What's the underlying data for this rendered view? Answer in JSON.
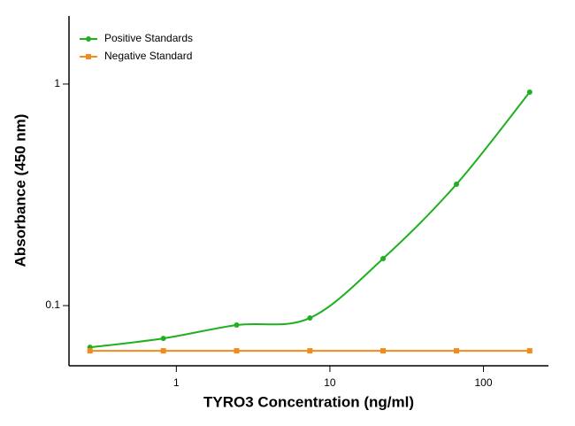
{
  "chart_data": {
    "type": "line",
    "x_label": "TYRO3 Concentration (ng/ml)",
    "y_label": "Absorbance (450 nm)",
    "x_scale": "log",
    "y_scale": "log",
    "xlim": [
      0.2,
      265
    ],
    "ylim": [
      0.0535,
      2.03
    ],
    "xticks": [
      1,
      10,
      100
    ],
    "yticks": [
      0.1,
      1
    ],
    "legend": "upper left",
    "series": [
      {
        "name": "Positive Standards",
        "color": "#1fb01f",
        "marker": "circle",
        "smooth": true,
        "x": [
          0.274,
          0.823,
          2.47,
          7.41,
          22.2,
          66.7,
          200
        ],
        "values": [
          0.0648,
          0.0711,
          0.0817,
          0.0879,
          0.163,
          0.353,
          0.92
        ]
      },
      {
        "name": "Negative Standard",
        "color": "#f28a1c",
        "marker": "square",
        "smooth": false,
        "x": [
          0.274,
          0.823,
          2.47,
          7.41,
          22.2,
          66.7,
          200
        ],
        "values": [
          0.0625,
          0.0625,
          0.0625,
          0.0625,
          0.0625,
          0.0625,
          0.0625
        ]
      }
    ]
  }
}
